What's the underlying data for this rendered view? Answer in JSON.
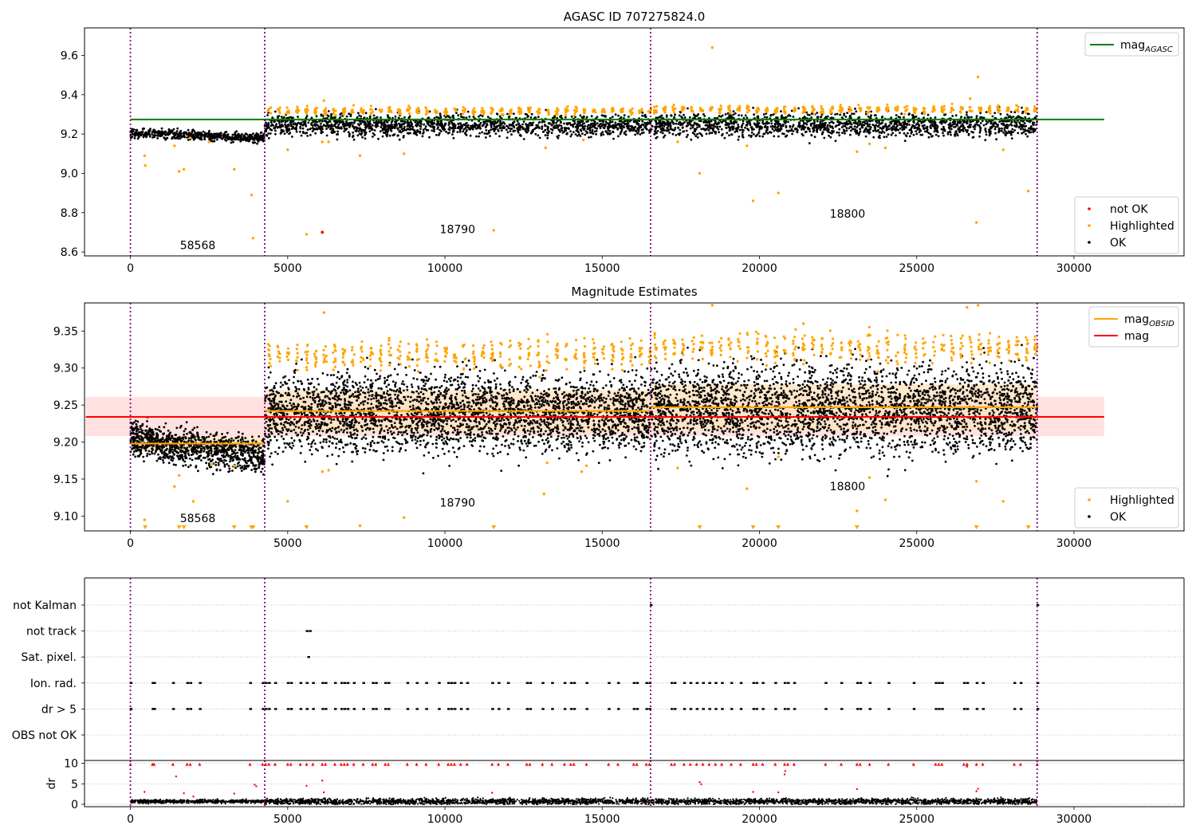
{
  "figure": {
    "title": "AGASC ID 707275824.0"
  },
  "chart_data": [
    {
      "type": "scatter",
      "title": "AGASC ID 707275824.0",
      "xlabel": "",
      "ylabel": "",
      "xlim": [
        -1460,
        33500
      ],
      "ylim": [
        8.58,
        9.74
      ],
      "xticks": [
        0,
        5000,
        10000,
        15000,
        20000,
        25000,
        30000
      ],
      "yticks": [
        8.6,
        8.8,
        9.0,
        9.2,
        9.4,
        9.6
      ],
      "ytick_labels": [
        "8.6",
        "8.8",
        "9.0",
        "9.2",
        "9.4",
        "9.6"
      ],
      "obsid_boundaries": [
        0,
        4270,
        16540,
        28830
      ],
      "boundary_color": "#800080",
      "reference_lines": [
        {
          "name": "mag",
          "subscript": "AGASC",
          "y": 9.274,
          "x_range": [
            0,
            30200
          ],
          "color": "#008000"
        }
      ],
      "obsid_labels": [
        {
          "text": "58568",
          "x": 2140,
          "y": 8.615
        },
        {
          "text": "18790",
          "x": 10400,
          "y": 8.695
        },
        {
          "text": "18800",
          "x": 22800,
          "y": 8.775
        }
      ],
      "series": [
        {
          "name": "not OK",
          "color": "#ff0000"
        },
        {
          "name": "Highlighted",
          "color": "#ffa500"
        },
        {
          "name": "OK",
          "color": "#000000"
        }
      ],
      "segments": [
        {
          "x_range": [
            0,
            4270
          ],
          "ok_center": 9.205,
          "ok_slope": -0.025,
          "ok_spread": 0.012,
          "high_level": null
        },
        {
          "x_range": [
            4270,
            16540
          ],
          "ok_center": 9.245,
          "ok_slope": 0.0,
          "ok_spread": 0.028,
          "high_level": 9.318
        },
        {
          "x_range": [
            16540,
            28830
          ],
          "ok_center": 9.248,
          "ok_slope": 0.0,
          "ok_spread": 0.03,
          "high_level": 9.325
        }
      ],
      "highlighted_outliers": [
        [
          450,
          9.09
        ],
        [
          470,
          9.04
        ],
        [
          1400,
          9.14
        ],
        [
          1550,
          9.01
        ],
        [
          1700,
          9.02
        ],
        [
          1900,
          9.18
        ],
        [
          2500,
          9.16
        ],
        [
          3300,
          9.02
        ],
        [
          3850,
          8.89
        ],
        [
          3900,
          8.67
        ],
        [
          5000,
          9.12
        ],
        [
          5600,
          8.69
        ],
        [
          6100,
          9.16
        ],
        [
          6150,
          9.37
        ],
        [
          6300,
          9.16
        ],
        [
          7300,
          9.09
        ],
        [
          8700,
          9.1
        ],
        [
          11550,
          8.71
        ],
        [
          13200,
          9.13
        ],
        [
          14400,
          9.17
        ],
        [
          17400,
          9.16
        ],
        [
          18100,
          9.0
        ],
        [
          18500,
          9.64
        ],
        [
          19600,
          9.14
        ],
        [
          19800,
          8.86
        ],
        [
          20600,
          8.9
        ],
        [
          23100,
          9.11
        ],
        [
          23500,
          9.15
        ],
        [
          24000,
          9.13
        ],
        [
          26700,
          9.38
        ],
        [
          26900,
          8.75
        ],
        [
          26950,
          9.49
        ],
        [
          27750,
          9.12
        ],
        [
          28550,
          8.91
        ]
      ],
      "not_ok_points": [
        [
          6100,
          8.7
        ]
      ],
      "legends": [
        {
          "position": "top-right",
          "entries": [
            "mag_AGASC"
          ]
        },
        {
          "position": "bottom-right",
          "entries": [
            "not OK",
            "Highlighted",
            "OK"
          ]
        }
      ],
      "grid": false
    },
    {
      "type": "scatter",
      "title": "Magnitude Estimates",
      "xlabel": "",
      "ylabel": "",
      "xlim": [
        -1460,
        33500
      ],
      "ylim": [
        9.08,
        9.388
      ],
      "xticks": [
        0,
        5000,
        10000,
        15000,
        20000,
        25000,
        30000
      ],
      "yticks": [
        9.1,
        9.15,
        9.2,
        9.25,
        9.3,
        9.35
      ],
      "ytick_labels": [
        "9.10",
        "9.15",
        "9.20",
        "9.25",
        "9.30",
        "9.35"
      ],
      "obsid_boundaries": [
        0,
        4270,
        16540,
        28830
      ],
      "boundary_color": "#800080",
      "reference_lines": [
        {
          "name": "mag",
          "y": 9.234,
          "x_range": [
            0,
            30200
          ],
          "color": "#ff0000",
          "band": [
            9.208,
            9.261
          ],
          "band_color": "#ffdede"
        }
      ],
      "obsid_mag": [
        {
          "x_range": [
            0,
            4270
          ],
          "mag": 9.198,
          "band": [
            9.188,
            9.208
          ]
        },
        {
          "x_range": [
            4270,
            16540
          ],
          "mag": 9.242,
          "band": [
            9.213,
            9.27
          ]
        },
        {
          "x_range": [
            16540,
            28830
          ],
          "mag": 9.247,
          "band": [
            9.215,
            9.278
          ]
        }
      ],
      "obsid_mag_series": {
        "name": "mag",
        "subscript": "OBSID",
        "color": "#ffa500"
      },
      "obsid_labels": [
        {
          "text": "58568",
          "x": 2140,
          "y": 9.092
        },
        {
          "text": "18790",
          "x": 10400,
          "y": 9.113
        },
        {
          "text": "18800",
          "x": 22800,
          "y": 9.135
        }
      ],
      "series": [
        {
          "name": "Highlighted",
          "color": "#ffa500"
        },
        {
          "name": "OK",
          "color": "#000000"
        }
      ],
      "segments": [
        {
          "x_range": [
            0,
            4270
          ],
          "ok_center": 9.205,
          "ok_slope": -0.025,
          "ok_spread": 0.012,
          "high_level": null
        },
        {
          "x_range": [
            4270,
            16540
          ],
          "ok_center": 9.24,
          "ok_slope": 0.0,
          "ok_spread": 0.026,
          "high_level": 9.318
        },
        {
          "x_range": [
            16540,
            28830
          ],
          "ok_center": 9.245,
          "ok_slope": 0.0,
          "ok_spread": 0.03,
          "high_level": 9.327
        }
      ],
      "highlighted_outliers": [
        [
          450,
          9.095
        ],
        [
          1400,
          9.14
        ],
        [
          1550,
          9.155
        ],
        [
          2000,
          9.12
        ],
        [
          2600,
          9.17
        ],
        [
          3300,
          9.168
        ],
        [
          5000,
          9.12
        ],
        [
          6100,
          9.16
        ],
        [
          6150,
          9.375
        ],
        [
          6300,
          9.162
        ],
        [
          7300,
          9.087
        ],
        [
          8700,
          9.098
        ],
        [
          13150,
          9.13
        ],
        [
          13250,
          9.172
        ],
        [
          14350,
          9.16
        ],
        [
          14500,
          9.168
        ],
        [
          17400,
          9.165
        ],
        [
          18500,
          9.385
        ],
        [
          19600,
          9.137
        ],
        [
          20600,
          9.18
        ],
        [
          21400,
          9.36
        ],
        [
          23100,
          9.107
        ],
        [
          23500,
          9.152
        ],
        [
          24000,
          9.122
        ],
        [
          26600,
          9.382
        ],
        [
          26900,
          9.147
        ],
        [
          26950,
          9.385
        ],
        [
          27750,
          9.12
        ]
      ],
      "clipped_low_markers": [
        470,
        1550,
        1700,
        3300,
        3850,
        3900,
        5600,
        11550,
        18100,
        19800,
        20600,
        23100,
        26900,
        28550
      ],
      "legends": [
        {
          "position": "top-right",
          "entries": [
            "mag_OBSID",
            "mag"
          ]
        },
        {
          "position": "bottom-right",
          "entries": [
            "Highlighted",
            "OK"
          ]
        }
      ],
      "grid": false
    },
    {
      "type": "scatter",
      "title": "",
      "xlabel": "",
      "ylabel": "",
      "xlim": [
        -1460,
        33500
      ],
      "categories": [
        "not Kalman",
        "not track",
        "Sat. pixel.",
        "Ion. rad.",
        "dr > 5",
        "OBS not OK"
      ],
      "grid": true,
      "obsid_boundaries": [
        0,
        4270,
        16540,
        28830
      ],
      "flag_events": {
        "not Kalman": [
          16540,
          28830
        ],
        "not track": [
          5600,
          5700
        ],
        "Sat. pixel.": [
          5650
        ],
        "Ion. rad.": [
          0,
          700,
          750,
          1350,
          1800,
          1900,
          2200,
          3800,
          4200,
          4300,
          4400,
          4600,
          5000,
          5100,
          5400,
          5600,
          5800,
          6100,
          6200,
          6500,
          6700,
          6800,
          6900,
          7100,
          7400,
          7700,
          7800,
          8100,
          8200,
          8800,
          9100,
          9400,
          9800,
          10100,
          10200,
          10300,
          10500,
          10700,
          11500,
          11700,
          12000,
          12600,
          12700,
          13100,
          13400,
          13800,
          14000,
          14100,
          14500,
          15200,
          15500,
          16000,
          16100,
          16400,
          16500,
          17200,
          17300,
          17600,
          17800,
          18000,
          18200,
          18400,
          18600,
          18800,
          19100,
          19400,
          19800,
          19900,
          20100,
          20500,
          20800,
          20900,
          21100,
          22100,
          22600,
          23100,
          23200,
          23500,
          24100,
          24900,
          25600,
          25700,
          25800,
          26500,
          26600,
          26900,
          27100,
          28100,
          28300,
          28830
        ],
        "dr > 5": [
          0,
          700,
          750,
          1350,
          1800,
          1900,
          2200,
          3800,
          4200,
          4300,
          4400,
          4600,
          5000,
          5100,
          5400,
          5600,
          5800,
          6100,
          6200,
          6500,
          6700,
          6800,
          6900,
          7100,
          7400,
          7700,
          7800,
          8100,
          8200,
          8800,
          9100,
          9400,
          9800,
          10100,
          10200,
          10300,
          10500,
          10700,
          11500,
          11700,
          12000,
          12600,
          12700,
          13100,
          13400,
          13800,
          14000,
          14100,
          14500,
          15200,
          15500,
          16000,
          16100,
          16400,
          16500,
          17200,
          17300,
          17600,
          17800,
          18000,
          18200,
          18400,
          18600,
          18800,
          19100,
          19400,
          19800,
          19900,
          20100,
          20500,
          20800,
          20900,
          21100,
          22100,
          22600,
          23100,
          23200,
          23500,
          24100,
          24900,
          25600,
          25700,
          25800,
          26500,
          26600,
          26900,
          27100,
          28100,
          28300,
          28830
        ],
        "OBS not OK": []
      }
    },
    {
      "type": "scatter",
      "title": "",
      "xlabel": "",
      "ylabel": "dr",
      "xlim": [
        -1460,
        33500
      ],
      "ylim": [
        -0.6,
        10.7
      ],
      "xticks": [
        0,
        5000,
        10000,
        15000,
        20000,
        25000,
        30000
      ],
      "yticks": [
        0,
        5,
        10
      ],
      "ytick_labels": [
        "0",
        "5",
        "10"
      ],
      "grid": true,
      "obsid_boundaries": [
        0,
        4270,
        16540,
        28830
      ],
      "ok_level": 0.7,
      "ok_spread": 0.35,
      "clipped_flagged_x": [
        0,
        700,
        750,
        1350,
        1800,
        1900,
        2200,
        3800,
        4200,
        4300,
        4400,
        4600,
        5000,
        5100,
        5400,
        5600,
        5800,
        6100,
        6200,
        6500,
        6700,
        6800,
        6900,
        7100,
        7400,
        7700,
        7800,
        8100,
        8200,
        8800,
        9100,
        9400,
        9800,
        10100,
        10200,
        10300,
        10500,
        10700,
        11500,
        11700,
        12000,
        12600,
        12700,
        13100,
        13400,
        13800,
        14000,
        14100,
        14500,
        15200,
        15500,
        16000,
        16100,
        16400,
        16500,
        17200,
        17300,
        17600,
        17800,
        18000,
        18200,
        18400,
        18600,
        18800,
        19100,
        19400,
        19800,
        19900,
        20100,
        20500,
        20800,
        20900,
        21100,
        22100,
        22600,
        23100,
        23200,
        23500,
        24100,
        24900,
        25600,
        25700,
        25800,
        26500,
        26600,
        26900,
        27100,
        28100,
        28300,
        28830
      ],
      "flagged_points": [
        [
          450,
          3.0
        ],
        [
          1450,
          6.8
        ],
        [
          1700,
          2.7
        ],
        [
          2000,
          1.9
        ],
        [
          3300,
          2.6
        ],
        [
          3950,
          4.8
        ],
        [
          4000,
          4.4
        ],
        [
          5600,
          4.5
        ],
        [
          6100,
          5.8
        ],
        [
          6150,
          2.9
        ],
        [
          11500,
          2.8
        ],
        [
          18100,
          5.4
        ],
        [
          18150,
          4.9
        ],
        [
          19800,
          3.0
        ],
        [
          20600,
          2.9
        ],
        [
          20800,
          7.3
        ],
        [
          20820,
          8.1
        ],
        [
          23100,
          3.7
        ],
        [
          26600,
          9.2
        ],
        [
          26900,
          3.2
        ],
        [
          26950,
          3.8
        ]
      ]
    }
  ]
}
